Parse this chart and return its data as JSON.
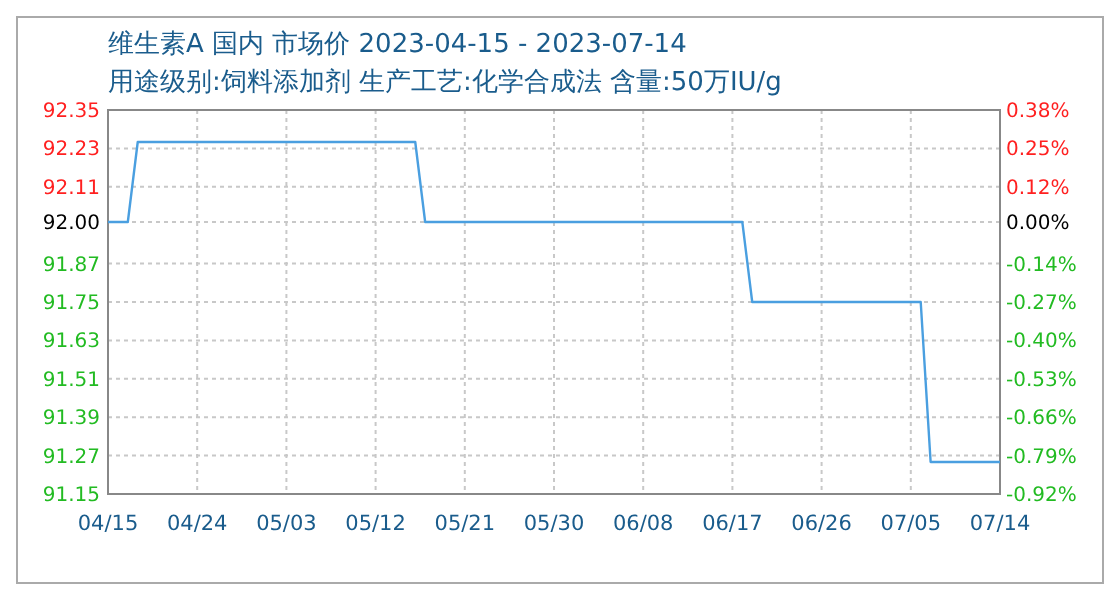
{
  "chart_data": {
    "type": "line",
    "title": "维生素A 国内 市场价 2023-04-15 - 2023-07-14",
    "subtitle": "用途级别:饲料添加剂 生产工艺:化学合成法 含量:50万IU/g",
    "series": [
      {
        "color": "#4a9fe0",
        "x": [
          "2023-04-15",
          "2023-04-17",
          "2023-04-18",
          "2023-05-16",
          "2023-05-17",
          "2023-06-18",
          "2023-06-19",
          "2023-07-06",
          "2023-07-07",
          "2023-07-14"
        ],
        "values": [
          92,
          92,
          92.25,
          92.25,
          92,
          92,
          91.75,
          91.75,
          91.25,
          91.25
        ]
      }
    ],
    "xlim": [
      "2023-04-15",
      "2023-07-14"
    ],
    "xticks": [
      {
        "value": "2023-04-15",
        "label": "04/15"
      },
      {
        "value": "2023-04-24",
        "label": "04/24"
      },
      {
        "value": "2023-05-03",
        "label": "05/03"
      },
      {
        "value": "2023-05-12",
        "label": "05/12"
      },
      {
        "value": "2023-05-21",
        "label": "05/21"
      },
      {
        "value": "2023-05-30",
        "label": "05/30"
      },
      {
        "value": "2023-06-08",
        "label": "06/08"
      },
      {
        "value": "2023-06-17",
        "label": "06/17"
      },
      {
        "value": "2023-06-26",
        "label": "06/26"
      },
      {
        "value": "2023-07-05",
        "label": "07/05"
      },
      {
        "value": "2023-07-14",
        "label": "07/14"
      }
    ],
    "ylim": [
      91.15,
      92.35
    ],
    "yticks": [
      92.35,
      92.23,
      92.11,
      {
        "value": 92,
        "label": "92.00"
      },
      91.87,
      91.75,
      91.63,
      91.51,
      91.39,
      91.27,
      91.15
    ],
    "y2lim": [
      -0.92,
      0.38
    ],
    "y2ticks": [
      {
        "value": 0.38,
        "label": "0.38%"
      },
      {
        "value": 0.25,
        "label": "0.25%"
      },
      {
        "value": 0.12,
        "label": "0.12%"
      },
      {
        "value": 0,
        "label": "0.00%"
      },
      {
        "value": -0.14,
        "label": "-0.14%"
      },
      {
        "value": -0.27,
        "label": "-0.27%"
      },
      {
        "value": -0.4,
        "label": "-0.40%"
      },
      {
        "value": -0.53,
        "label": "-0.53%"
      },
      {
        "value": -0.66,
        "label": "-0.66%"
      },
      {
        "value": -0.79,
        "label": "-0.79%"
      },
      {
        "value": -0.92,
        "label": "-0.92%"
      }
    ],
    "grid": true,
    "marker": "none",
    "line_style": "solid"
  }
}
